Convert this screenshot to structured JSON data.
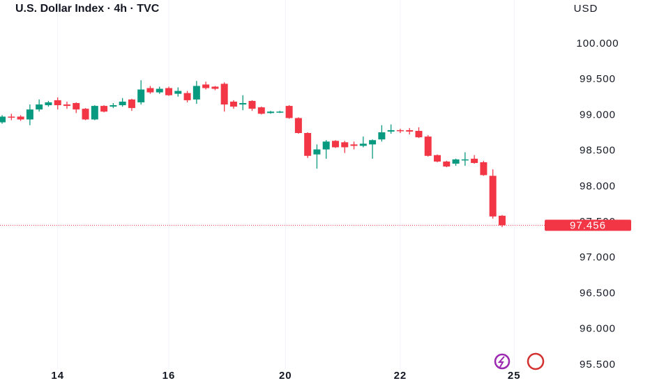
{
  "chart_data": {
    "type": "candlestick",
    "title": "U.S. Dollar Index · 4h · TVC",
    "currency": "USD",
    "up_color": "#089981",
    "down_color": "#f23645",
    "grid": true,
    "ylim": [
      95.44,
      100.615
    ],
    "yticks": [
      {
        "value": 95.5,
        "label": "95.500"
      },
      {
        "value": 96,
        "label": "96.000"
      },
      {
        "value": 96.5,
        "label": "96.500"
      },
      {
        "value": 97,
        "label": "97.000"
      },
      {
        "value": 97.5,
        "label": "97.500"
      },
      {
        "value": 98,
        "label": "98.000"
      },
      {
        "value": 98.5,
        "label": "98.500"
      },
      {
        "value": 99,
        "label": "99.000"
      },
      {
        "value": 99.5,
        "label": "99.500"
      },
      {
        "value": 100,
        "label": "100.000"
      }
    ],
    "xlim": [
      -0.23,
      58.9
    ],
    "xticks": [
      {
        "value": 6,
        "label": "14"
      },
      {
        "value": 18,
        "label": "16"
      },
      {
        "value": 30.6,
        "label": "20"
      },
      {
        "value": 43,
        "label": "22"
      },
      {
        "value": 55.3,
        "label": "25"
      }
    ],
    "series": [
      {
        "open": [
          98.9,
          98.98,
          98.98,
          98.94,
          99.08,
          99.14,
          99.21,
          99.15,
          99.17,
          99.09,
          98.94,
          99.13,
          99.12,
          99.14,
          99.22,
          99.18,
          99.38,
          99.32,
          99.38,
          99.3,
          99.31,
          99.22,
          99.43,
          99.4,
          99.44,
          99.19,
          99.15,
          99.2,
          99.11,
          99.03,
          99.04,
          99.13,
          98.96,
          98.75,
          98.45,
          98.52,
          98.64,
          98.62,
          98.59,
          98.57,
          98.59,
          98.66,
          98.77,
          98.79,
          98.79,
          98.78,
          98.7,
          98.44,
          98.35,
          98.32,
          98.37,
          98.39,
          98.34,
          98.15,
          97.59
        ],
        "high": [
          99.0,
          99.02,
          99.0,
          99.15,
          99.22,
          99.2,
          99.25,
          99.19,
          99.18,
          99.1,
          99.14,
          99.14,
          99.17,
          99.24,
          99.23,
          99.49,
          99.41,
          99.4,
          99.4,
          99.39,
          99.34,
          99.48,
          99.47,
          99.41,
          99.46,
          99.21,
          99.28,
          99.21,
          99.12,
          99.06,
          99.06,
          99.14,
          98.97,
          98.76,
          98.59,
          98.65,
          98.65,
          98.64,
          98.63,
          98.7,
          98.66,
          98.86,
          98.87,
          98.81,
          98.82,
          98.83,
          98.72,
          98.45,
          98.36,
          98.39,
          98.48,
          98.44,
          98.36,
          98.24,
          97.6
        ],
        "low": [
          98.88,
          98.93,
          98.92,
          98.86,
          99.05,
          99.12,
          99.08,
          99.09,
          99.03,
          98.93,
          98.93,
          99.04,
          99.1,
          99.12,
          99.06,
          99.15,
          99.3,
          99.3,
          99.27,
          99.26,
          99.18,
          99.16,
          99.36,
          99.35,
          99.05,
          99.09,
          99.07,
          99.06,
          99.01,
          99.02,
          99.03,
          98.95,
          98.74,
          98.4,
          98.25,
          98.39,
          98.54,
          98.47,
          98.52,
          98.55,
          98.39,
          98.63,
          98.74,
          98.75,
          98.73,
          98.68,
          98.42,
          98.34,
          98.27,
          98.29,
          98.29,
          98.32,
          98.15,
          97.55,
          97.43
        ],
        "close": [
          98.98,
          98.97,
          98.94,
          99.08,
          99.15,
          99.18,
          99.14,
          99.13,
          99.08,
          98.94,
          99.13,
          99.05,
          99.14,
          99.19,
          99.1,
          99.36,
          99.32,
          99.37,
          99.28,
          99.34,
          99.21,
          99.41,
          99.38,
          99.37,
          99.15,
          99.12,
          99.17,
          99.09,
          99.02,
          99.05,
          99.05,
          98.96,
          98.75,
          98.43,
          98.52,
          98.63,
          98.55,
          98.55,
          98.57,
          98.6,
          98.65,
          98.76,
          98.79,
          98.78,
          98.77,
          98.69,
          98.43,
          98.35,
          98.28,
          98.38,
          98.38,
          98.33,
          98.16,
          97.58,
          97.456
        ]
      }
    ]
  }
}
